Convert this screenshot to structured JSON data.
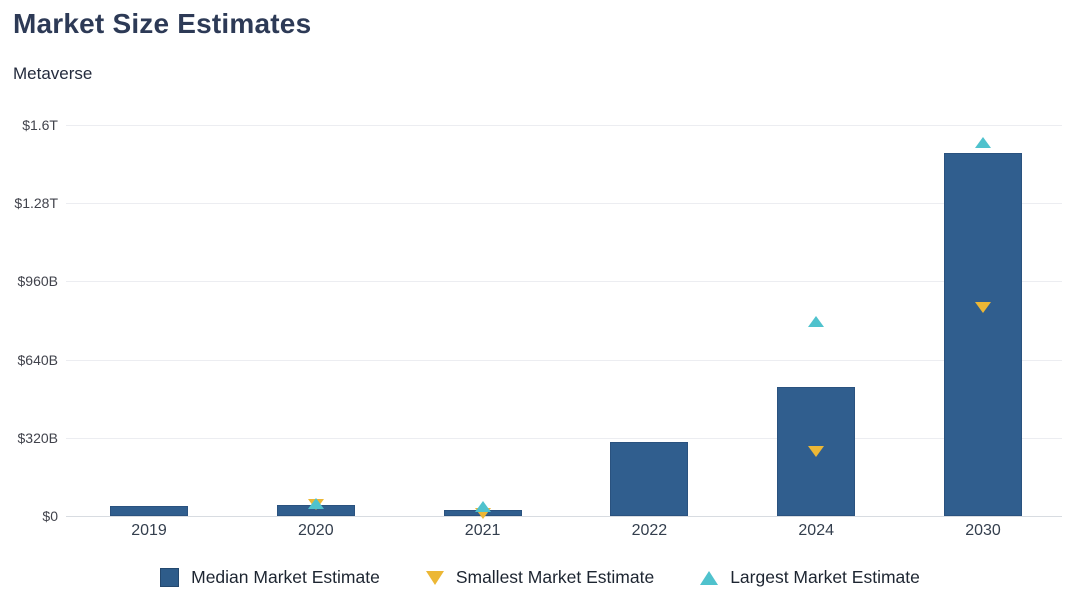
{
  "header": {
    "title": "Market Size Estimates",
    "subtitle": "Metaverse"
  },
  "colors": {
    "bar_fill": "#305E8E",
    "bar_border": "#2A527F",
    "legend_square": "#2E5C8A",
    "smallest_marker": "#ECB735",
    "largest_marker": "#4FC2CD",
    "gridline": "#ECEDF1",
    "baseline": "#D8DCE1"
  },
  "chart_data": {
    "type": "bar",
    "title": "Market Size Estimates",
    "subtitle": "Metaverse",
    "unit": "USD billions",
    "categories": [
      "2019",
      "2020",
      "2021",
      "2022",
      "2024",
      "2030"
    ],
    "series": [
      {
        "name": "Median Market Estimate",
        "render": "bar",
        "color": "#305E8E",
        "values": [
          42,
          43,
          25,
          303,
          528,
          1487
        ]
      },
      {
        "name": "Smallest Market Estimate",
        "render": "triangle-down",
        "color": "#ECB735",
        "values": [
          null,
          47,
          10,
          null,
          262,
          855
        ]
      },
      {
        "name": "Largest Market Estimate",
        "render": "triangle-up",
        "color": "#4FC2CD",
        "values": [
          null,
          53,
          38,
          null,
          794,
          1530
        ]
      }
    ],
    "y_axis": {
      "range": [
        0,
        1600
      ],
      "ticks": [
        {
          "label": "$0",
          "value": 0
        },
        {
          "label": "$320B",
          "value": 320
        },
        {
          "label": "$640B",
          "value": 640
        },
        {
          "label": "$960B",
          "value": 960
        },
        {
          "label": "$1.28T",
          "value": 1280
        },
        {
          "label": "$1.6T",
          "value": 1600
        }
      ]
    },
    "grid": true,
    "legend_position": "bottom",
    "legend": [
      {
        "label": "Median Market Estimate",
        "marker": "square",
        "color": "#2E5C8A"
      },
      {
        "label": "Smallest Market Estimate",
        "marker": "triangle-down",
        "color": "#ECB735"
      },
      {
        "label": "Largest Market Estimate",
        "marker": "triangle-up",
        "color": "#4FC2CD"
      }
    ]
  }
}
